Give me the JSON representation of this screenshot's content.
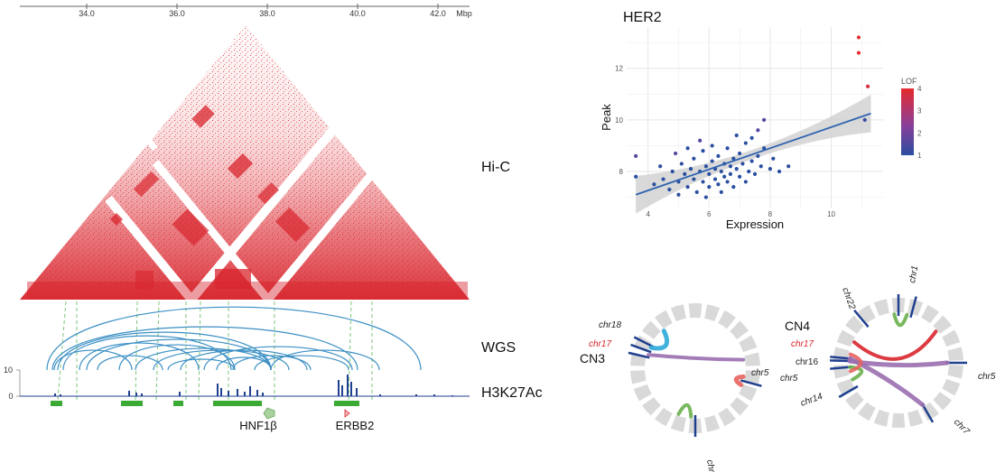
{
  "genome_axis": {
    "ticks": [
      "34.0",
      "36.0",
      "38.0",
      "40.0",
      "42.0"
    ],
    "unit": "Mbp"
  },
  "tracks": {
    "hic": "Hi-C",
    "wgs": "WGS",
    "h3k27ac": "H3K27Ac",
    "h3k27ac_ymax": "10",
    "h3k27ac_ymin": "0"
  },
  "genes": {
    "hnf1b": "HNF1β",
    "erbb2": "ERBB2"
  },
  "colors": {
    "hic": "#d8262e",
    "arc": "#3b8fc4",
    "peak": "#1f3f8f",
    "region": "#3aaa35",
    "guide": "#7cc67a",
    "fit": "#2f63b0",
    "band": "#cfcfcf"
  },
  "chart_data": {
    "type": "scatter",
    "title": "HER2",
    "xlabel": "Expression",
    "ylabel": "Peak",
    "xticks": [
      "4",
      "6",
      "8",
      "10"
    ],
    "yticks": [
      "8",
      "10",
      "12"
    ],
    "xlim": [
      3.3,
      11.7
    ],
    "ylim": [
      6.6,
      13.6
    ],
    "grid": true,
    "legend": {
      "title": "LOF",
      "ticks": [
        "1",
        "2",
        "3",
        "4"
      ],
      "range": [
        1,
        4
      ],
      "placement": "right"
    },
    "fit_line": {
      "x": [
        3.6,
        11.3
      ],
      "y": [
        7.1,
        10.25
      ]
    },
    "points": [
      {
        "x": 3.6,
        "y": 8.6,
        "lof": 1.6
      },
      {
        "x": 3.6,
        "y": 7.8,
        "lof": 1.0
      },
      {
        "x": 4.9,
        "y": 8.7,
        "lof": 1.6
      },
      {
        "x": 5.7,
        "y": 9.2,
        "lof": 1.6
      },
      {
        "x": 7.6,
        "y": 9.6,
        "lof": 1.6
      },
      {
        "x": 7.8,
        "y": 10.0,
        "lof": 1.6
      },
      {
        "x": 10.9,
        "y": 13.2,
        "lof": 4.0
      },
      {
        "x": 10.9,
        "y": 12.6,
        "lof": 4.0
      },
      {
        "x": 11.2,
        "y": 11.3,
        "lof": 3.8
      },
      {
        "x": 11.1,
        "y": 10.0,
        "lof": 1.2
      },
      {
        "x": 4.2,
        "y": 7.5,
        "lof": 1.0
      },
      {
        "x": 4.5,
        "y": 7.7,
        "lof": 1.0
      },
      {
        "x": 4.7,
        "y": 7.3,
        "lof": 1.0
      },
      {
        "x": 4.8,
        "y": 8.0,
        "lof": 1.0
      },
      {
        "x": 5.0,
        "y": 7.6,
        "lof": 1.0
      },
      {
        "x": 5.0,
        "y": 7.1,
        "lof": 1.0
      },
      {
        "x": 5.1,
        "y": 8.3,
        "lof": 1.0
      },
      {
        "x": 5.2,
        "y": 7.9,
        "lof": 1.0
      },
      {
        "x": 5.3,
        "y": 7.4,
        "lof": 1.0
      },
      {
        "x": 5.4,
        "y": 8.1,
        "lof": 1.0
      },
      {
        "x": 5.5,
        "y": 7.7,
        "lof": 1.0
      },
      {
        "x": 5.5,
        "y": 8.5,
        "lof": 1.0
      },
      {
        "x": 5.6,
        "y": 7.2,
        "lof": 1.0
      },
      {
        "x": 5.7,
        "y": 8.0,
        "lof": 1.0
      },
      {
        "x": 5.8,
        "y": 7.6,
        "lof": 1.0
      },
      {
        "x": 5.8,
        "y": 8.8,
        "lof": 1.0
      },
      {
        "x": 5.9,
        "y": 8.2,
        "lof": 1.0
      },
      {
        "x": 6.0,
        "y": 7.4,
        "lof": 1.0
      },
      {
        "x": 6.0,
        "y": 7.9,
        "lof": 1.0
      },
      {
        "x": 6.1,
        "y": 8.4,
        "lof": 1.0
      },
      {
        "x": 6.1,
        "y": 9.0,
        "lof": 1.0
      },
      {
        "x": 6.2,
        "y": 7.7,
        "lof": 1.0
      },
      {
        "x": 6.2,
        "y": 8.1,
        "lof": 1.0
      },
      {
        "x": 6.3,
        "y": 7.5,
        "lof": 1.0
      },
      {
        "x": 6.3,
        "y": 8.6,
        "lof": 1.0
      },
      {
        "x": 6.4,
        "y": 8.0,
        "lof": 1.0
      },
      {
        "x": 6.4,
        "y": 7.2,
        "lof": 1.0
      },
      {
        "x": 6.5,
        "y": 8.3,
        "lof": 1.0
      },
      {
        "x": 6.5,
        "y": 7.8,
        "lof": 1.0
      },
      {
        "x": 6.6,
        "y": 8.9,
        "lof": 1.0
      },
      {
        "x": 6.6,
        "y": 7.6,
        "lof": 1.0
      },
      {
        "x": 6.7,
        "y": 8.2,
        "lof": 1.0
      },
      {
        "x": 6.7,
        "y": 7.9,
        "lof": 1.0
      },
      {
        "x": 6.8,
        "y": 8.5,
        "lof": 1.0
      },
      {
        "x": 6.8,
        "y": 7.4,
        "lof": 1.0
      },
      {
        "x": 6.9,
        "y": 8.1,
        "lof": 1.0
      },
      {
        "x": 7.0,
        "y": 8.7,
        "lof": 1.0
      },
      {
        "x": 7.0,
        "y": 7.8,
        "lof": 1.0
      },
      {
        "x": 7.1,
        "y": 8.3,
        "lof": 1.0
      },
      {
        "x": 7.2,
        "y": 7.6,
        "lof": 1.0
      },
      {
        "x": 7.2,
        "y": 9.1,
        "lof": 1.0
      },
      {
        "x": 7.3,
        "y": 8.0,
        "lof": 1.0
      },
      {
        "x": 7.4,
        "y": 8.4,
        "lof": 1.0
      },
      {
        "x": 7.5,
        "y": 7.9,
        "lof": 1.0
      },
      {
        "x": 7.6,
        "y": 8.6,
        "lof": 1.0
      },
      {
        "x": 7.7,
        "y": 8.2,
        "lof": 1.0
      },
      {
        "x": 7.8,
        "y": 8.9,
        "lof": 1.0
      },
      {
        "x": 8.0,
        "y": 8.1,
        "lof": 1.0
      },
      {
        "x": 8.1,
        "y": 8.5,
        "lof": 1.0
      },
      {
        "x": 8.3,
        "y": 8.0,
        "lof": 1.0
      },
      {
        "x": 8.6,
        "y": 8.2,
        "lof": 1.0
      },
      {
        "x": 5.9,
        "y": 7.0,
        "lof": 1.0
      },
      {
        "x": 6.9,
        "y": 9.4,
        "lof": 1.0
      },
      {
        "x": 7.4,
        "y": 9.3,
        "lof": 1.0
      },
      {
        "x": 5.3,
        "y": 8.9,
        "lof": 1.0
      },
      {
        "x": 4.4,
        "y": 8.2,
        "lof": 1.0
      }
    ]
  },
  "circos": {
    "left": {
      "copy_number": "CN3",
      "labels": {
        "chr18": "chr18",
        "chr17": "chr17",
        "chr5": "chr5",
        "chr9": "chr9"
      }
    },
    "right": {
      "copy_number": "CN4",
      "labels": {
        "chr22": "chr22",
        "chr1": "chr1",
        "chr17": "chr17",
        "chr16": "chr16",
        "chr5_left": "chr5",
        "chr14": "chr14",
        "chr5_right": "chr5",
        "chr7": "chr7"
      }
    }
  }
}
